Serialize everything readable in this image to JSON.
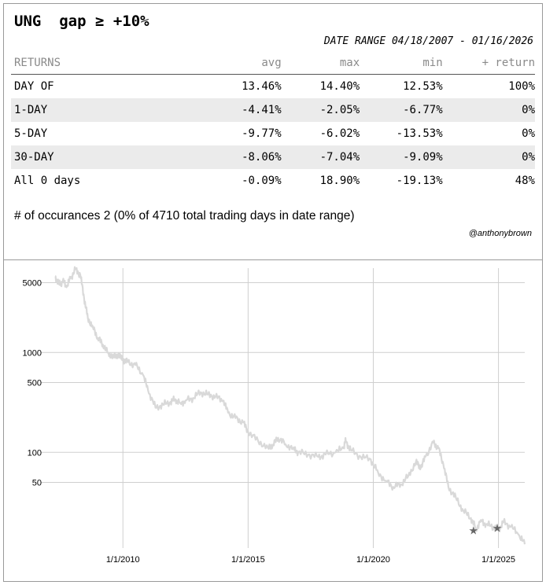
{
  "header": {
    "ticker": "UNG",
    "condition": "gap ≥ +10%",
    "date_range": "DATE RANGE 04/18/2007 - 01/16/2026"
  },
  "returns_table": {
    "columns": [
      "RETURNS",
      "avg",
      "max",
      "min",
      "+ return"
    ],
    "rows": [
      {
        "label": "DAY OF",
        "avg": "13.46%",
        "max": "14.40%",
        "min": "12.53%",
        "pos": "100%"
      },
      {
        "label": "1-DAY",
        "avg": "-4.41%",
        "max": "-2.05%",
        "min": "-6.77%",
        "pos": "0%"
      },
      {
        "label": "5-DAY",
        "avg": "-9.77%",
        "max": "-6.02%",
        "min": "-13.53%",
        "pos": "0%"
      },
      {
        "label": "30-DAY",
        "avg": "-8.06%",
        "max": "-7.04%",
        "min": "-9.09%",
        "pos": "0%"
      },
      {
        "label": "All 0 days",
        "avg": "-0.09%",
        "max": "18.90%",
        "min": "-19.13%",
        "pos": "48%"
      }
    ]
  },
  "occurrences_text": "# of occurances 2 (0% of 4710 total trading days in date range)",
  "credit": "@anthonybrown",
  "chart_data": {
    "type": "line",
    "title": "",
    "xlabel": "",
    "ylabel": "",
    "y_scale": "log",
    "ylim": [
      11,
      7000
    ],
    "xlim": [
      2007.29,
      2026.05
    ],
    "y_ticks": [
      50,
      100,
      500,
      1000,
      5000
    ],
    "y_tick_labels": [
      "50",
      "100",
      "500",
      "1000",
      "5000"
    ],
    "x_ticks": [
      2010,
      2015,
      2020,
      2025
    ],
    "x_tick_labels": [
      "1/1/2010",
      "1/1/2015",
      "1/1/2020",
      "1/1/2025"
    ],
    "grid": true,
    "line_color": "#d9d9d9",
    "marker_color": "#666666",
    "series": [
      {
        "name": "UNG",
        "x": [
          2007.29,
          2007.45,
          2007.6,
          2007.75,
          2007.9,
          2008.1,
          2008.3,
          2008.45,
          2008.6,
          2008.8,
          2009.0,
          2009.2,
          2009.4,
          2009.6,
          2009.8,
          2010.0,
          2010.2,
          2010.5,
          2010.8,
          2011.0,
          2011.3,
          2011.6,
          2011.9,
          2012.1,
          2012.3,
          2012.5,
          2012.8,
          2013.1,
          2013.4,
          2013.7,
          2014.0,
          2014.2,
          2014.5,
          2014.8,
          2015.0,
          2015.4,
          2015.8,
          2016.0,
          2016.2,
          2016.5,
          2016.8,
          2017.0,
          2017.4,
          2017.8,
          2018.1,
          2018.5,
          2018.8,
          2018.9,
          2019.1,
          2019.5,
          2019.9,
          2020.2,
          2020.5,
          2020.8,
          2021.1,
          2021.4,
          2021.7,
          2021.9,
          2022.1,
          2022.4,
          2022.6,
          2022.8,
          2023.0,
          2023.3,
          2023.6,
          2023.9,
          2024.1,
          2024.3,
          2024.5,
          2024.8,
          2025.0,
          2025.2,
          2025.5,
          2025.8,
          2026.05
        ],
        "values": [
          5800,
          4800,
          5200,
          4500,
          5500,
          6800,
          6000,
          3500,
          2200,
          1800,
          1400,
          1200,
          1000,
          900,
          950,
          850,
          800,
          750,
          600,
          420,
          280,
          300,
          320,
          340,
          310,
          330,
          350,
          400,
          380,
          360,
          330,
          250,
          220,
          200,
          160,
          130,
          110,
          120,
          140,
          120,
          110,
          100,
          95,
          90,
          95,
          100,
          110,
          130,
          105,
          90,
          85,
          62,
          52,
          45,
          48,
          58,
          80,
          70,
          92,
          125,
          110,
          75,
          45,
          35,
          26,
          22,
          17,
          21,
          19,
          18,
          17,
          20,
          18,
          15,
          12
        ]
      }
    ],
    "event_markers": {
      "x": [
        2024.0,
        2024.95
      ],
      "values": [
        16.5,
        17.5
      ],
      "symbol": "★"
    }
  }
}
